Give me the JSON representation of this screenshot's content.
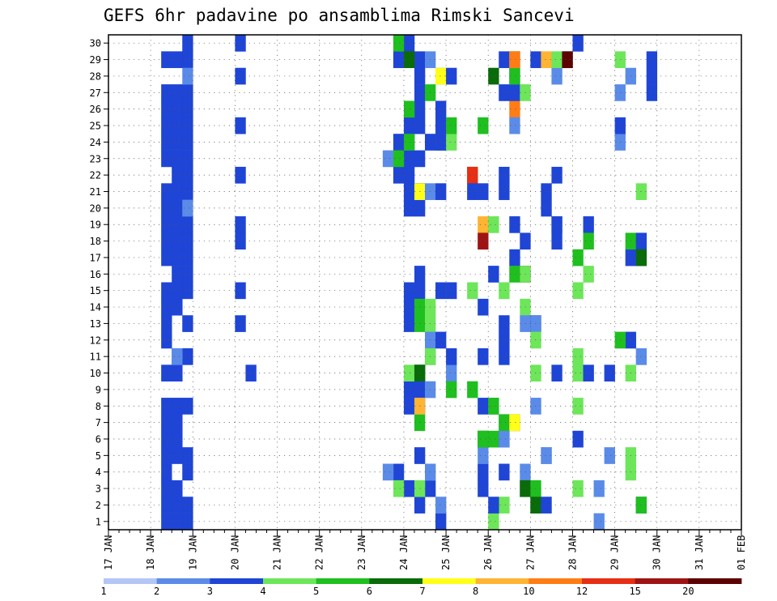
{
  "chart_data": {
    "type": "heatmap",
    "title": "GEFS 6hr padavine po ansamblima Rimski Sancevi",
    "xlabel": "",
    "ylabel": "",
    "x_tick_labels": [
      "17 JAN",
      "18 JAN",
      "19 JAN",
      "20 JAN",
      "21 JAN",
      "22 JAN",
      "23 JAN",
      "24 JAN",
      "25 JAN",
      "26 JAN",
      "27 JAN",
      "28 JAN",
      "29 JAN",
      "30 JAN",
      "31 JAN",
      "01 FEB"
    ],
    "x_steps_per_day": 4,
    "y_tick_labels": [
      "1",
      "2",
      "3",
      "4",
      "5",
      "6",
      "7",
      "8",
      "9",
      "10",
      "11",
      "12",
      "13",
      "14",
      "15",
      "16",
      "17",
      "18",
      "19",
      "20",
      "21",
      "22",
      "23",
      "24",
      "25",
      "26",
      "27",
      "28",
      "29",
      "30"
    ],
    "ylim": [
      0.5,
      30.5
    ],
    "grid": true,
    "legend_position": "bottom",
    "legend_labels": [
      "1",
      "2",
      "3",
      "4",
      "5",
      "6",
      "7",
      "8",
      "10",
      "12",
      "15",
      "20"
    ],
    "colors": [
      "#b3c6f5",
      "#5b8be8",
      "#1f45d6",
      "#6de65a",
      "#1fbf1f",
      "#0a6b0a",
      "#ffff1a",
      "#ffb433",
      "#ff7d14",
      "#e82e14",
      "#9e1414",
      "#5c0000"
    ],
    "cells": [
      [
        1,
        1,
        3,
        1
      ],
      [
        1,
        1,
        3,
        2
      ],
      [
        1,
        1,
        3,
        3
      ],
      [
        1,
        1,
        3,
        4
      ],
      [
        1,
        1,
        3,
        5
      ],
      [
        1,
        1,
        3,
        6
      ],
      [
        1,
        1,
        3,
        7
      ],
      [
        1,
        1,
        3,
        8
      ],
      [
        1,
        1,
        3,
        10
      ],
      [
        1,
        1,
        3,
        12
      ],
      [
        1,
        1,
        3,
        13
      ],
      [
        1,
        1,
        3,
        14
      ],
      [
        1,
        1,
        3,
        15
      ],
      [
        1,
        1,
        3,
        17
      ],
      [
        1,
        1,
        3,
        18
      ],
      [
        1,
        1,
        3,
        19
      ],
      [
        1,
        1,
        3,
        20
      ],
      [
        1,
        1,
        3,
        21
      ],
      [
        1,
        1,
        3,
        23
      ],
      [
        1,
        1,
        3,
        24
      ],
      [
        1,
        1,
        3,
        25
      ],
      [
        1,
        1,
        3,
        26
      ],
      [
        1,
        1,
        3,
        27
      ],
      [
        1,
        1,
        3,
        29
      ],
      [
        1,
        2,
        3,
        1
      ],
      [
        1,
        2,
        3,
        2
      ],
      [
        1,
        2,
        3,
        3
      ],
      [
        1,
        2,
        3,
        5
      ],
      [
        1,
        2,
        3,
        6
      ],
      [
        1,
        2,
        3,
        7
      ],
      [
        1,
        2,
        3,
        8
      ],
      [
        1,
        2,
        3,
        10
      ],
      [
        1,
        2,
        3,
        11
      ],
      [
        1,
        2,
        3,
        14
      ],
      [
        1,
        2,
        3,
        15
      ],
      [
        1,
        2,
        3,
        16
      ],
      [
        1,
        2,
        3,
        17
      ],
      [
        1,
        2,
        3,
        18
      ],
      [
        1,
        2,
        3,
        19
      ],
      [
        1,
        2,
        3,
        20
      ],
      [
        1,
        2,
        3,
        21
      ],
      [
        1,
        2,
        3,
        22
      ],
      [
        1,
        2,
        3,
        23
      ],
      [
        1,
        2,
        3,
        24
      ],
      [
        1,
        2,
        3,
        25
      ],
      [
        1,
        2,
        3,
        26
      ],
      [
        1,
        2,
        3,
        27
      ],
      [
        1,
        2,
        3,
        29
      ],
      [
        1,
        3,
        3,
        1
      ],
      [
        1,
        3,
        3,
        2
      ],
      [
        1,
        3,
        3,
        4
      ],
      [
        1,
        3,
        3,
        5
      ],
      [
        1,
        3,
        3,
        8
      ],
      [
        1,
        3,
        3,
        11
      ],
      [
        1,
        3,
        3,
        13
      ],
      [
        1,
        3,
        3,
        15
      ],
      [
        1,
        3,
        3,
        16
      ],
      [
        1,
        3,
        3,
        17
      ],
      [
        1,
        3,
        3,
        18
      ],
      [
        1,
        3,
        3,
        19
      ],
      [
        1,
        3,
        3,
        21
      ],
      [
        1,
        3,
        3,
        22
      ],
      [
        1,
        3,
        3,
        23
      ],
      [
        1,
        3,
        3,
        24
      ],
      [
        1,
        3,
        3,
        25
      ],
      [
        1,
        3,
        3,
        26
      ],
      [
        1,
        3,
        3,
        27
      ],
      [
        1,
        3,
        3,
        29
      ],
      [
        1,
        3,
        3,
        30
      ],
      [
        1,
        2,
        2,
        11
      ],
      [
        1,
        3,
        2,
        20
      ],
      [
        1,
        3,
        2,
        28
      ],
      [
        3,
        0,
        3,
        13
      ],
      [
        3,
        0,
        3,
        15
      ],
      [
        3,
        0,
        3,
        18
      ],
      [
        3,
        0,
        3,
        19
      ],
      [
        3,
        0,
        3,
        22
      ],
      [
        3,
        0,
        3,
        25
      ],
      [
        3,
        0,
        3,
        28
      ],
      [
        3,
        0,
        3,
        30
      ],
      [
        3,
        1,
        3,
        10
      ],
      [
        6,
        3,
        3,
        4
      ],
      [
        6,
        3,
        3,
        29
      ],
      [
        6,
        3,
        3,
        24
      ],
      [
        6,
        2,
        2,
        23
      ],
      [
        6,
        3,
        3,
        22
      ],
      [
        6,
        2,
        2,
        4
      ],
      [
        7,
        0,
        3,
        3
      ],
      [
        7,
        0,
        3,
        8
      ],
      [
        7,
        0,
        3,
        9
      ],
      [
        7,
        0,
        3,
        13
      ],
      [
        7,
        0,
        3,
        14
      ],
      [
        7,
        0,
        3,
        15
      ],
      [
        7,
        0,
        3,
        20
      ],
      [
        7,
        0,
        3,
        21
      ],
      [
        7,
        0,
        3,
        22
      ],
      [
        7,
        0,
        3,
        23
      ],
      [
        7,
        0,
        3,
        24
      ],
      [
        7,
        0,
        3,
        25
      ],
      [
        7,
        0,
        3,
        30
      ],
      [
        7,
        1,
        3,
        2
      ],
      [
        7,
        1,
        3,
        5
      ],
      [
        7,
        1,
        3,
        28
      ],
      [
        7,
        1,
        3,
        20
      ],
      [
        7,
        1,
        3,
        29
      ],
      [
        7,
        1,
        3,
        15
      ],
      [
        7,
        1,
        3,
        16
      ],
      [
        7,
        1,
        3,
        25
      ],
      [
        7,
        1,
        3,
        26
      ],
      [
        7,
        1,
        3,
        27
      ],
      [
        7,
        1,
        3,
        9
      ],
      [
        7,
        1,
        3,
        8
      ],
      [
        7,
        1,
        3,
        10
      ],
      [
        7,
        1,
        3,
        21
      ],
      [
        7,
        1,
        3,
        23
      ],
      [
        7,
        2,
        3,
        3
      ],
      [
        7,
        2,
        3,
        24
      ],
      [
        6,
        3,
        5,
        30
      ],
      [
        6,
        3,
        4,
        3
      ],
      [
        7,
        1,
        4,
        3
      ],
      [
        6,
        3,
        5,
        23
      ],
      [
        7,
        0,
        5,
        24
      ],
      [
        7,
        0,
        5,
        26
      ],
      [
        7,
        0,
        4,
        10
      ],
      [
        7,
        1,
        5,
        10
      ],
      [
        7,
        1,
        5,
        7
      ],
      [
        7,
        1,
        5,
        13
      ],
      [
        7,
        1,
        5,
        14
      ],
      [
        7,
        1,
        8,
        8
      ],
      [
        7,
        0,
        6,
        29
      ],
      [
        7,
        1,
        6,
        21
      ],
      [
        7,
        1,
        7,
        21
      ],
      [
        7,
        1,
        6,
        10
      ],
      [
        7,
        2,
        2,
        29
      ],
      [
        7,
        2,
        4,
        14
      ],
      [
        7,
        2,
        4,
        4
      ],
      [
        7,
        2,
        4,
        13
      ],
      [
        7,
        2,
        2,
        12
      ],
      [
        7,
        2,
        2,
        11
      ],
      [
        7,
        2,
        4,
        11
      ],
      [
        7,
        2,
        2,
        9
      ],
      [
        7,
        2,
        2,
        4
      ],
      [
        7,
        2,
        5,
        27
      ],
      [
        7,
        3,
        5,
        28
      ],
      [
        7,
        3,
        7,
        28
      ],
      [
        7,
        2,
        2,
        21
      ],
      [
        7,
        3,
        5,
        24
      ],
      [
        7,
        3,
        3,
        1
      ],
      [
        7,
        3,
        2,
        2
      ],
      [
        7,
        3,
        3,
        24
      ],
      [
        7,
        3,
        3,
        25
      ],
      [
        7,
        3,
        3,
        12
      ],
      [
        7,
        3,
        3,
        15
      ],
      [
        7,
        3,
        3,
        26
      ],
      [
        7,
        3,
        3,
        21
      ],
      [
        8,
        0,
        4,
        24
      ],
      [
        8,
        0,
        5,
        25
      ],
      [
        8,
        0,
        3,
        15
      ],
      [
        8,
        0,
        2,
        10
      ],
      [
        8,
        0,
        3,
        11
      ],
      [
        8,
        0,
        3,
        28
      ],
      [
        8,
        3,
        3,
        4
      ],
      [
        8,
        3,
        3,
        3
      ],
      [
        8,
        3,
        2,
        5
      ],
      [
        8,
        3,
        3,
        8
      ],
      [
        8,
        3,
        3,
        11
      ],
      [
        8,
        3,
        3,
        21
      ],
      [
        8,
        3,
        6,
        6
      ],
      [
        8,
        3,
        5,
        6
      ],
      [
        9,
        0,
        5,
        6
      ],
      [
        8,
        0,
        5,
        9
      ],
      [
        8,
        2,
        5,
        22
      ],
      [
        8,
        2,
        10,
        22
      ],
      [
        8,
        2,
        3,
        21
      ],
      [
        8,
        2,
        4,
        15
      ],
      [
        8,
        3,
        3,
        14
      ],
      [
        8,
        3,
        5,
        25
      ],
      [
        8,
        3,
        8,
        19
      ],
      [
        8,
        3,
        11,
        18
      ],
      [
        9,
        0,
        4,
        19
      ],
      [
        8,
        2,
        5,
        9
      ],
      [
        9,
        0,
        6,
        28
      ],
      [
        9,
        1,
        3,
        11
      ],
      [
        9,
        1,
        4,
        15
      ],
      [
        9,
        1,
        4,
        2
      ],
      [
        9,
        1,
        3,
        4
      ],
      [
        9,
        1,
        3,
        6
      ],
      [
        9,
        1,
        3,
        12
      ],
      [
        9,
        1,
        3,
        21
      ],
      [
        9,
        1,
        3,
        22
      ],
      [
        9,
        1,
        3,
        27
      ],
      [
        9,
        1,
        3,
        29
      ],
      [
        9,
        1,
        3,
        13
      ],
      [
        9,
        0,
        4,
        1
      ],
      [
        9,
        0,
        2,
        8
      ],
      [
        9,
        0,
        5,
        8
      ],
      [
        9,
        0,
        3,
        16
      ],
      [
        9,
        0,
        3,
        2
      ],
      [
        9,
        1,
        2,
        6
      ],
      [
        9,
        1,
        2,
        7
      ],
      [
        9,
        1,
        5,
        7
      ],
      [
        9,
        2,
        3,
        7
      ],
      [
        9,
        2,
        9,
        7
      ],
      [
        9,
        2,
        9,
        26
      ],
      [
        9,
        2,
        2,
        25
      ],
      [
        9,
        2,
        3,
        19
      ],
      [
        9,
        2,
        3,
        17
      ],
      [
        9,
        2,
        3,
        28
      ],
      [
        9,
        2,
        3,
        27
      ],
      [
        9,
        2,
        3,
        29
      ],
      [
        9,
        2,
        5,
        16
      ],
      [
        9,
        3,
        11,
        16
      ],
      [
        9,
        3,
        4,
        16
      ],
      [
        9,
        2,
        7,
        7
      ],
      [
        9,
        3,
        3,
        18
      ],
      [
        9,
        2,
        5,
        28
      ],
      [
        9,
        2,
        8,
        29
      ],
      [
        9,
        2,
        9,
        29
      ],
      [
        9,
        3,
        4,
        27
      ],
      [
        9,
        3,
        4,
        14
      ],
      [
        9,
        3,
        2,
        13
      ],
      [
        9,
        3,
        2,
        4
      ],
      [
        9,
        3,
        2,
        3
      ],
      [
        9,
        3,
        6,
        3
      ],
      [
        10,
        0,
        5,
        3
      ],
      [
        10,
        0,
        4,
        2
      ],
      [
        10,
        0,
        6,
        2
      ],
      [
        10,
        1,
        3,
        2
      ],
      [
        10,
        0,
        3,
        13
      ],
      [
        10,
        0,
        2,
        13
      ],
      [
        10,
        0,
        2,
        8
      ],
      [
        10,
        0,
        4,
        12
      ],
      [
        10,
        0,
        3,
        29
      ],
      [
        10,
        1,
        2,
        5
      ],
      [
        10,
        1,
        2,
        5
      ],
      [
        10,
        0,
        4,
        10
      ],
      [
        10,
        2,
        3,
        10
      ],
      [
        10,
        2,
        5,
        19
      ],
      [
        10,
        2,
        3,
        22
      ],
      [
        10,
        1,
        3,
        21
      ],
      [
        10,
        1,
        3,
        20
      ],
      [
        10,
        2,
        3,
        19
      ],
      [
        10,
        2,
        3,
        18
      ],
      [
        10,
        2,
        2,
        28
      ],
      [
        10,
        1,
        8,
        29
      ],
      [
        10,
        2,
        4,
        29
      ],
      [
        10,
        3,
        2,
        29
      ],
      [
        10,
        3,
        12,
        29
      ],
      [
        11,
        0,
        4,
        11
      ],
      [
        11,
        0,
        4,
        10
      ],
      [
        11,
        0,
        4,
        15
      ],
      [
        11,
        0,
        4,
        3
      ],
      [
        11,
        0,
        3,
        6
      ],
      [
        11,
        1,
        3,
        19
      ],
      [
        11,
        0,
        5,
        17
      ],
      [
        11,
        1,
        5,
        18
      ],
      [
        11,
        1,
        4,
        16
      ],
      [
        11,
        0,
        3,
        30
      ],
      [
        11,
        0,
        4,
        8
      ],
      [
        11,
        1,
        3,
        10
      ],
      [
        11,
        2,
        2,
        1
      ],
      [
        11,
        3,
        3,
        10
      ],
      [
        11,
        2,
        2,
        3
      ],
      [
        11,
        3,
        2,
        5
      ],
      [
        12,
        0,
        2,
        24
      ],
      [
        12,
        0,
        4,
        29
      ],
      [
        12,
        0,
        3,
        25
      ],
      [
        12,
        0,
        2,
        27
      ],
      [
        12,
        1,
        3,
        17
      ],
      [
        12,
        1,
        5,
        18
      ],
      [
        12,
        1,
        4,
        4
      ],
      [
        12,
        1,
        4,
        10
      ],
      [
        12,
        1,
        4,
        5
      ],
      [
        12,
        2,
        3,
        2
      ],
      [
        12,
        2,
        5,
        2
      ],
      [
        12,
        2,
        2,
        11
      ],
      [
        12,
        2,
        3,
        18
      ],
      [
        12,
        2,
        3,
        17
      ],
      [
        12,
        2,
        6,
        17
      ],
      [
        12,
        3,
        3,
        29
      ],
      [
        12,
        3,
        3,
        28
      ],
      [
        12,
        3,
        3,
        27
      ],
      [
        12,
        1,
        2,
        28
      ],
      [
        12,
        2,
        4,
        21
      ],
      [
        12,
        1,
        3,
        12
      ],
      [
        12,
        0,
        5,
        12
      ]
    ]
  }
}
